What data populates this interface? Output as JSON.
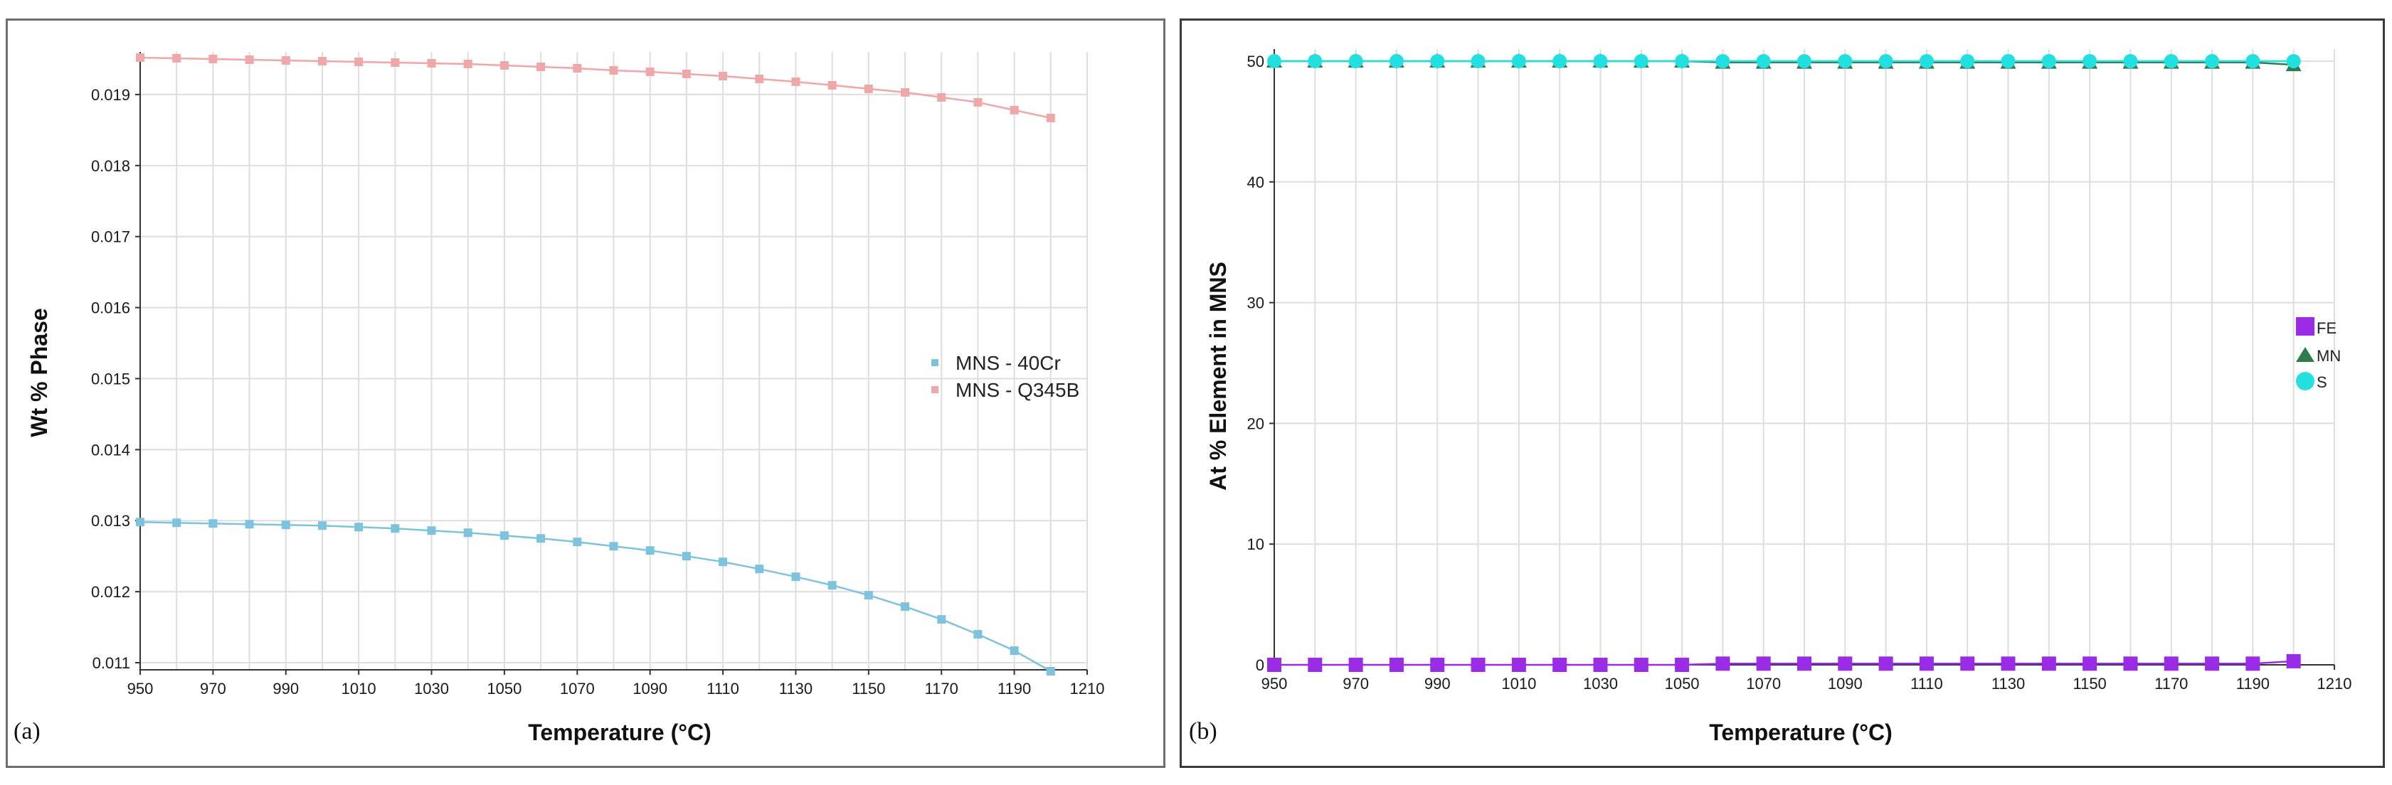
{
  "chart_data": [
    {
      "panel_label": "(a)",
      "type": "line",
      "xlabel": "Temperature (°C)",
      "ylabel": "Wt % Phase",
      "xlim": [
        950,
        1210
      ],
      "ylim": [
        0.0109,
        0.0196
      ],
      "xticks": [
        "950",
        "970",
        "990",
        "1010",
        "1030",
        "1050",
        "1070",
        "1090",
        "1110",
        "1130",
        "1150",
        "1170",
        "1190",
        "1210"
      ],
      "yticks": [
        "0.011",
        "0.012",
        "0.013",
        "0.014",
        "0.015",
        "0.016",
        "0.017",
        "0.018",
        "0.019"
      ],
      "x": [
        950,
        960,
        970,
        980,
        990,
        1000,
        1010,
        1020,
        1030,
        1040,
        1050,
        1060,
        1070,
        1080,
        1090,
        1100,
        1110,
        1120,
        1130,
        1140,
        1150,
        1160,
        1170,
        1180,
        1190,
        1200
      ],
      "legend_position": "center-right",
      "series": [
        {
          "name": "MNS - 40Cr",
          "color": "#7ec3de",
          "values": [
            0.01298,
            0.01297,
            0.01296,
            0.01295,
            0.01294,
            0.01293,
            0.01291,
            0.01289,
            0.01286,
            0.01283,
            0.01279,
            0.01275,
            0.0127,
            0.01264,
            0.01258,
            0.0125,
            0.01242,
            0.01232,
            0.01221,
            0.01209,
            0.01195,
            0.01179,
            0.01161,
            0.0114,
            0.01117,
            0.01088
          ]
        },
        {
          "name": "MNS - Q345B",
          "color": "#f0a7a7",
          "values": [
            0.01952,
            0.01951,
            0.0195,
            0.01949,
            0.01948,
            0.01947,
            0.01946,
            0.01945,
            0.01944,
            0.01943,
            0.01941,
            0.01939,
            0.01937,
            0.01934,
            0.01932,
            0.01929,
            0.01926,
            0.01922,
            0.01918,
            0.01913,
            0.01908,
            0.01903,
            0.01896,
            0.01889,
            0.01878,
            0.01867
          ]
        }
      ]
    },
    {
      "panel_label": "(b)",
      "type": "line",
      "xlabel": "Temperature (°C)",
      "ylabel": "At % Element in MNS",
      "xlim": [
        950,
        1210
      ],
      "ylim": [
        0,
        51
      ],
      "xticks": [
        "950",
        "970",
        "990",
        "1010",
        "1030",
        "1050",
        "1070",
        "1090",
        "1110",
        "1130",
        "1150",
        "1170",
        "1190",
        "1210"
      ],
      "yticks": [
        "0",
        "10",
        "20",
        "30",
        "40",
        "50"
      ],
      "x": [
        950,
        960,
        970,
        980,
        990,
        1000,
        1010,
        1020,
        1030,
        1040,
        1050,
        1060,
        1070,
        1080,
        1090,
        1100,
        1110,
        1120,
        1130,
        1140,
        1150,
        1160,
        1170,
        1180,
        1190,
        1200
      ],
      "legend_position": "right",
      "series": [
        {
          "name": "FE",
          "color": "#9a2be6",
          "marker": "square",
          "values": [
            0,
            0,
            0,
            0,
            0,
            0,
            0,
            0,
            0,
            0,
            0,
            0.1,
            0.1,
            0.1,
            0.1,
            0.1,
            0.1,
            0.1,
            0.1,
            0.1,
            0.1,
            0.1,
            0.1,
            0.1,
            0.1,
            0.3
          ]
        },
        {
          "name": "MN",
          "color": "#2f7d4c",
          "marker": "triangle",
          "values": [
            50,
            50,
            50,
            50,
            50,
            50,
            50,
            50,
            50,
            50,
            50,
            49.9,
            49.9,
            49.9,
            49.9,
            49.9,
            49.9,
            49.9,
            49.9,
            49.9,
            49.9,
            49.9,
            49.9,
            49.9,
            49.9,
            49.7
          ]
        },
        {
          "name": "S",
          "color": "#22e0e0",
          "marker": "circle",
          "values": [
            50,
            50,
            50,
            50,
            50,
            50,
            50,
            50,
            50,
            50,
            50,
            50,
            50,
            50,
            50,
            50,
            50,
            50,
            50,
            50,
            50,
            50,
            50,
            50,
            50,
            50
          ]
        }
      ]
    }
  ]
}
